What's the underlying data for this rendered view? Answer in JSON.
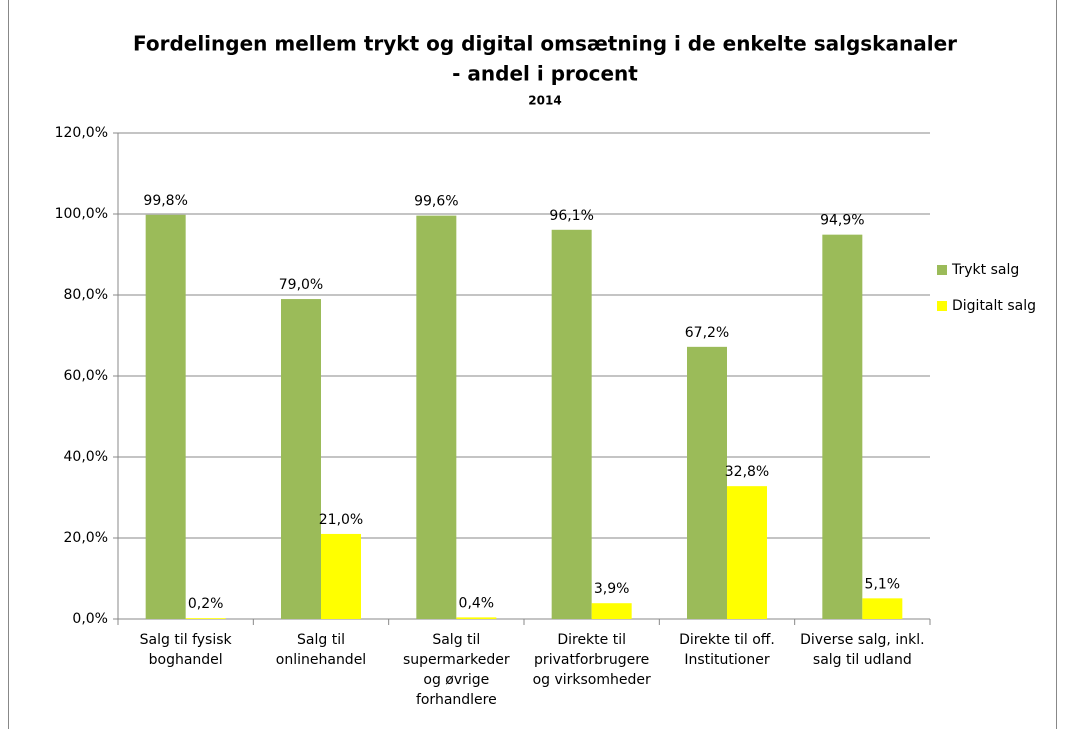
{
  "chart_data": {
    "type": "bar",
    "title": "Fordelingen mellem trykt og digital omsætning i de enkelte salgskanaler",
    "title_line2": "- andel i procent",
    "subtitle": "2014",
    "categories": [
      "Salg til fysisk\nboghandel",
      "Salg til\nonlinehandel",
      "Salg til\nsupermarkeder\nog øvrige\nforhandlere",
      "Direkte til\nprivatforbrugere\nog virksomheder",
      "Direkte til off.\nInstitutioner",
      "Diverse salg, inkl.\nsalg til udland"
    ],
    "series": [
      {
        "name": "Trykt salg",
        "color": "#9bbb59",
        "values": [
          99.8,
          79.0,
          99.6,
          96.1,
          67.2,
          94.9
        ],
        "value_labels": [
          "99,8%",
          "79,0%",
          "99,6%",
          "96,1%",
          "67,2%",
          "94,9%"
        ]
      },
      {
        "name": "Digitalt salg",
        "color": "#ffff00",
        "values": [
          0.2,
          21.0,
          0.4,
          3.9,
          32.8,
          5.1
        ],
        "value_labels": [
          "0,2%",
          "21,0%",
          "0,4%",
          "3,9%",
          "32,8%",
          "5,1%"
        ]
      }
    ],
    "ylim": [
      0,
      120
    ],
    "yticks": [
      {
        "value": 0,
        "label": "0,0%"
      },
      {
        "value": 20,
        "label": "20,0%"
      },
      {
        "value": 40,
        "label": "40,0%"
      },
      {
        "value": 60,
        "label": "60,0%"
      },
      {
        "value": 80,
        "label": "80,0%"
      },
      {
        "value": 100,
        "label": "100,0%"
      },
      {
        "value": 120,
        "label": "120,0%"
      }
    ],
    "grid": true,
    "legend": "right"
  }
}
